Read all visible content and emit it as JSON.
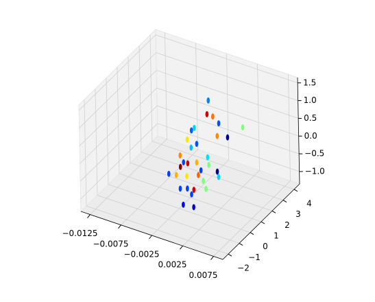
{
  "chart_data": {
    "type": "scatter3d",
    "xlim": [
      -0.014,
      0.009
    ],
    "ylim": [
      -2.5,
      4.5
    ],
    "zlim": [
      -1.35,
      1.65
    ],
    "xticks": [
      {
        "value": -0.0125,
        "label": "−0.0125"
      },
      {
        "value": -0.0075,
        "label": "−0.0075"
      },
      {
        "value": -0.0025,
        "label": "−0.0025"
      },
      {
        "value": 0.0025,
        "label": "0.0025"
      },
      {
        "value": 0.0075,
        "label": "0.0075"
      }
    ],
    "yticks": [
      {
        "value": -2,
        "label": "−2"
      },
      {
        "value": -1,
        "label": "−1"
      },
      0,
      1,
      2,
      3,
      4
    ],
    "zticks": [
      {
        "value": -1.0,
        "label": "−1.0"
      },
      {
        "value": -0.5,
        "label": "−0.5"
      },
      {
        "value": 0.0,
        "label": "0.0"
      },
      {
        "value": 0.5,
        "label": "0.5"
      },
      {
        "value": 1.0,
        "label": "1.0"
      },
      {
        "value": 1.5,
        "label": "1.5"
      }
    ],
    "grid": true,
    "x": [
      0.00056,
      0.00067,
      0.00143,
      0.00201,
      0.00245,
      0.00378,
      0.0061,
      -0.00144,
      -0.0021,
      -0.003,
      -0.0011,
      -0.0022,
      0.0001,
      0.001,
      0.002,
      -0.0042,
      -0.0033,
      -0.004,
      -0.0028,
      -0.0017,
      -0.0003,
      -0.0047,
      -0.0061,
      -0.0028,
      -0.0011,
      -0.0005,
      -0.0017,
      -0.0041,
      -0.0033,
      -0.0019,
      0.0001,
      -0.0011,
      0.0006,
      0.0022
    ],
    "y": [
      1.1,
      0.9,
      1.0,
      1.2,
      0.8,
      1.0,
      1.1,
      0.9,
      1.0,
      1.1,
      0.9,
      1.0,
      1.2,
      0.8,
      1.0,
      1.1,
      0.9,
      1.0,
      1.0,
      1.2,
      0.8,
      1.0,
      1.1,
      0.9,
      1.0,
      1.1,
      0.9,
      1.0,
      1.2,
      0.8,
      1.0,
      -0.4,
      -0.4,
      1.0
    ],
    "z": [
      1.54,
      1.22,
      1.17,
      0.95,
      0.74,
      0.72,
      1.11,
      0.71,
      0.57,
      0.23,
      0.28,
      0.08,
      -0.12,
      -0.16,
      -0.35,
      -0.29,
      -0.37,
      -0.57,
      -0.4,
      -0.37,
      -0.39,
      -0.84,
      -0.92,
      -0.73,
      -0.63,
      -0.79,
      -1.05,
      -1.19,
      -1.2,
      -1.16,
      -0.95,
      -1.04,
      -1.01,
      -0.49
    ],
    "colors": [
      "#0080ff",
      "#d00000",
      "#ff7000",
      "#0050ff",
      "#ff8a00",
      "#00008f",
      "#7dff7a",
      "#00d4ff",
      "#0060ff",
      "#ffe600",
      "#0050ff",
      "#00c0ff",
      "#00e0ff",
      "#7dff7a",
      "#00008f",
      "#ff8a00",
      "#0040ff",
      "#8b0000",
      "#d00000",
      "#ffb000",
      "#0040ff",
      "#ffb000",
      "#0040ff",
      "#ffe600",
      "#ff6000",
      "#7dff7a",
      "#d00000",
      "#0040ff",
      "#0040ff",
      "#0040ff",
      "#7dff7a",
      "#0000ff",
      "#0000cd",
      "#00d4ff"
    ]
  }
}
